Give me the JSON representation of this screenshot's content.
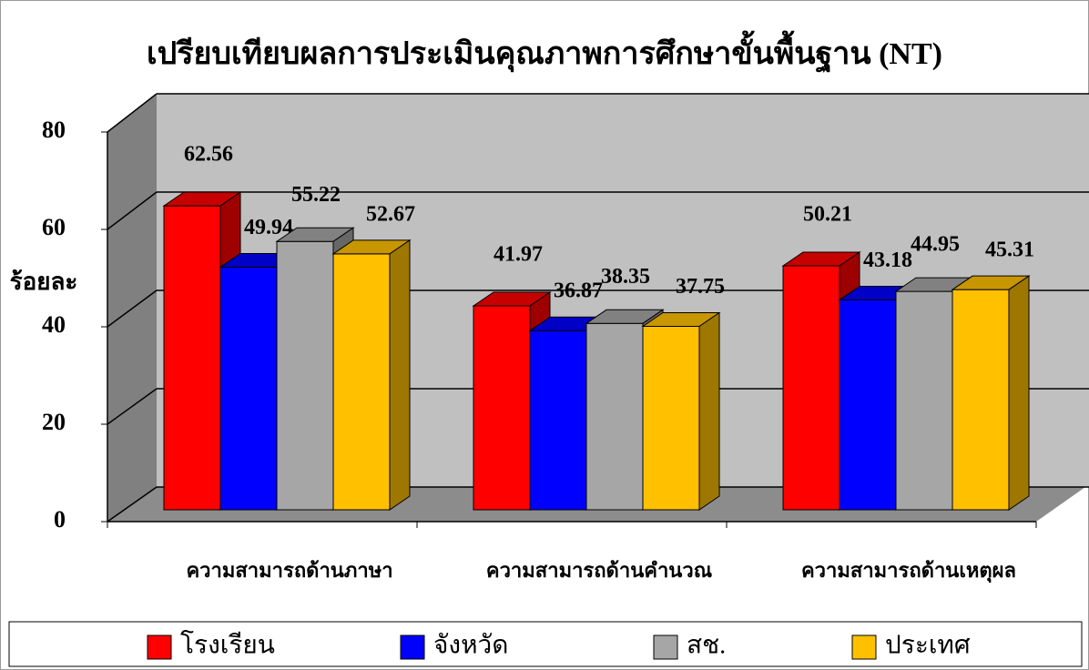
{
  "chart_data": {
    "type": "bar",
    "title": "เปรียบเทียบผลการประเมินคุณภาพการศึกษาขั้นพื้นฐาน (NT)",
    "y_label": "ร้อยละ",
    "categories": [
      "ความสามารถด้านภาษา",
      "ความสามารถด้านคำนวณ",
      "ความสามารถด้านเหตุผล"
    ],
    "series": [
      {
        "name": "โรงเรียน",
        "color": "#ff0000",
        "values": [
          62.56,
          41.97,
          50.21
        ]
      },
      {
        "name": "จังหวัด",
        "color": "#0000ff",
        "values": [
          49.94,
          36.87,
          43.18
        ]
      },
      {
        "name": "สช.",
        "color": "#a6a6a6",
        "values": [
          55.22,
          38.35,
          44.95
        ]
      },
      {
        "name": "ประเทศ",
        "color": "#ffc000",
        "values": [
          52.67,
          37.75,
          45.31
        ]
      }
    ],
    "ylim": [
      0,
      80
    ],
    "yticks": [
      0,
      20,
      40,
      60,
      80
    ],
    "grid": true,
    "legend": "bottom"
  }
}
